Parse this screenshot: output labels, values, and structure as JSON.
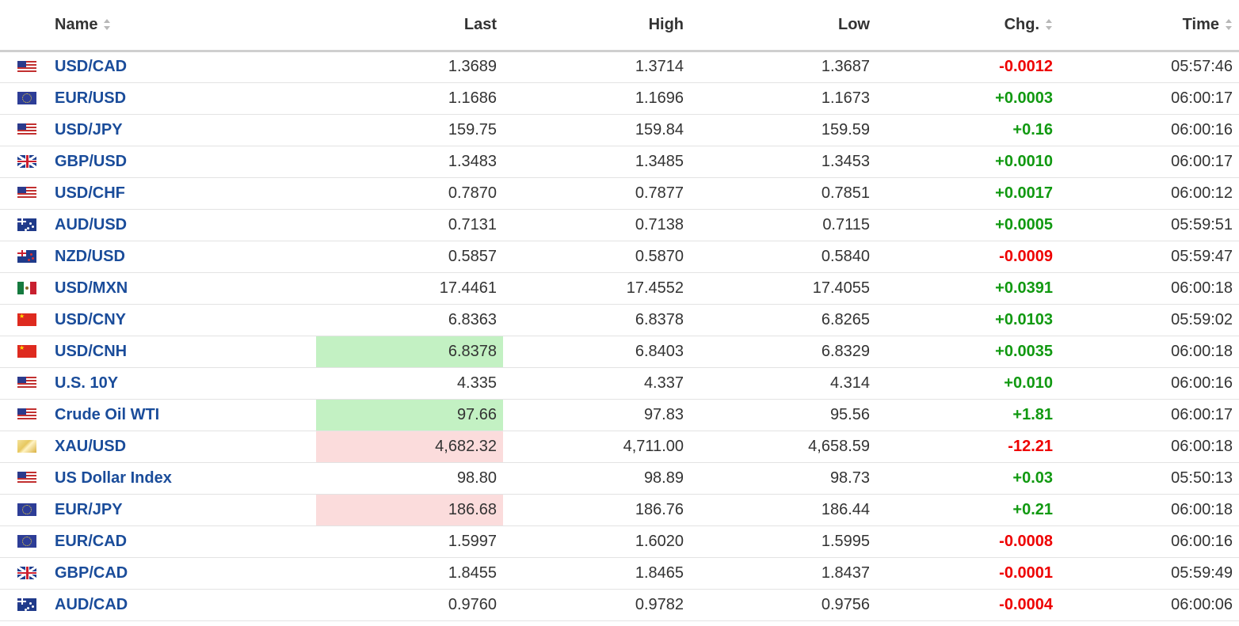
{
  "table": {
    "columns": {
      "name": "Name",
      "last": "Last",
      "high": "High",
      "low": "Low",
      "chg": "Chg.",
      "time": "Time"
    },
    "colors": {
      "up": "#119911",
      "down": "#ee0000",
      "link": "#1a4c9a",
      "flash_up": "#c3f1c3",
      "flash_down": "#fbdcdc"
    },
    "rows": [
      {
        "flag": "us-flag-icon",
        "name": "USD/CAD",
        "last": "1.3689",
        "high": "1.3714",
        "low": "1.3687",
        "chg": "-0.0012",
        "time": "05:57:46",
        "dir": "down",
        "flash": ""
      },
      {
        "flag": "eu-flag-icon",
        "name": "EUR/USD",
        "last": "1.1686",
        "high": "1.1696",
        "low": "1.1673",
        "chg": "+0.0003",
        "time": "06:00:17",
        "dir": "up",
        "flash": ""
      },
      {
        "flag": "us-flag-icon",
        "name": "USD/JPY",
        "last": "159.75",
        "high": "159.84",
        "low": "159.59",
        "chg": "+0.16",
        "time": "06:00:16",
        "dir": "up",
        "flash": ""
      },
      {
        "flag": "gb-flag-icon",
        "name": "GBP/USD",
        "last": "1.3483",
        "high": "1.3485",
        "low": "1.3453",
        "chg": "+0.0010",
        "time": "06:00:17",
        "dir": "up",
        "flash": ""
      },
      {
        "flag": "us-flag-icon",
        "name": "USD/CHF",
        "last": "0.7870",
        "high": "0.7877",
        "low": "0.7851",
        "chg": "+0.0017",
        "time": "06:00:12",
        "dir": "up",
        "flash": ""
      },
      {
        "flag": "au-flag-icon",
        "name": "AUD/USD",
        "last": "0.7131",
        "high": "0.7138",
        "low": "0.7115",
        "chg": "+0.0005",
        "time": "05:59:51",
        "dir": "up",
        "flash": ""
      },
      {
        "flag": "nz-flag-icon",
        "name": "NZD/USD",
        "last": "0.5857",
        "high": "0.5870",
        "low": "0.5840",
        "chg": "-0.0009",
        "time": "05:59:47",
        "dir": "down",
        "flash": ""
      },
      {
        "flag": "mx-flag-icon",
        "name": "USD/MXN",
        "last": "17.4461",
        "high": "17.4552",
        "low": "17.4055",
        "chg": "+0.0391",
        "time": "06:00:18",
        "dir": "up",
        "flash": ""
      },
      {
        "flag": "cn-flag-icon",
        "name": "USD/CNY",
        "last": "6.8363",
        "high": "6.8378",
        "low": "6.8265",
        "chg": "+0.0103",
        "time": "05:59:02",
        "dir": "up",
        "flash": ""
      },
      {
        "flag": "cn-flag-icon",
        "name": "USD/CNH",
        "last": "6.8378",
        "high": "6.8403",
        "low": "6.8329",
        "chg": "+0.0035",
        "time": "06:00:18",
        "dir": "up",
        "flash": "up"
      },
      {
        "flag": "us-flag-icon",
        "name": "U.S. 10Y",
        "last": "4.335",
        "high": "4.337",
        "low": "4.314",
        "chg": "+0.010",
        "time": "06:00:16",
        "dir": "up",
        "flash": ""
      },
      {
        "flag": "us-flag-icon",
        "name": "Crude Oil WTI",
        "last": "97.66",
        "high": "97.83",
        "low": "95.56",
        "chg": "+1.81",
        "time": "06:00:17",
        "dir": "up",
        "flash": "up"
      },
      {
        "flag": "gold-icon",
        "name": "XAU/USD",
        "last": "4,682.32",
        "high": "4,711.00",
        "low": "4,658.59",
        "chg": "-12.21",
        "time": "06:00:18",
        "dir": "down",
        "flash": "down"
      },
      {
        "flag": "us-flag-icon",
        "name": "US Dollar Index",
        "last": "98.80",
        "high": "98.89",
        "low": "98.73",
        "chg": "+0.03",
        "time": "05:50:13",
        "dir": "up",
        "flash": ""
      },
      {
        "flag": "eu-flag-icon",
        "name": "EUR/JPY",
        "last": "186.68",
        "high": "186.76",
        "low": "186.44",
        "chg": "+0.21",
        "time": "06:00:18",
        "dir": "up",
        "flash": "down"
      },
      {
        "flag": "eu-flag-icon",
        "name": "EUR/CAD",
        "last": "1.5997",
        "high": "1.6020",
        "low": "1.5995",
        "chg": "-0.0008",
        "time": "06:00:16",
        "dir": "down",
        "flash": ""
      },
      {
        "flag": "gb-flag-icon",
        "name": "GBP/CAD",
        "last": "1.8455",
        "high": "1.8465",
        "low": "1.8437",
        "chg": "-0.0001",
        "time": "05:59:49",
        "dir": "down",
        "flash": ""
      },
      {
        "flag": "au-flag-icon",
        "name": "AUD/CAD",
        "last": "0.9760",
        "high": "0.9782",
        "low": "0.9756",
        "chg": "-0.0004",
        "time": "06:00:06",
        "dir": "down",
        "flash": ""
      }
    ]
  }
}
